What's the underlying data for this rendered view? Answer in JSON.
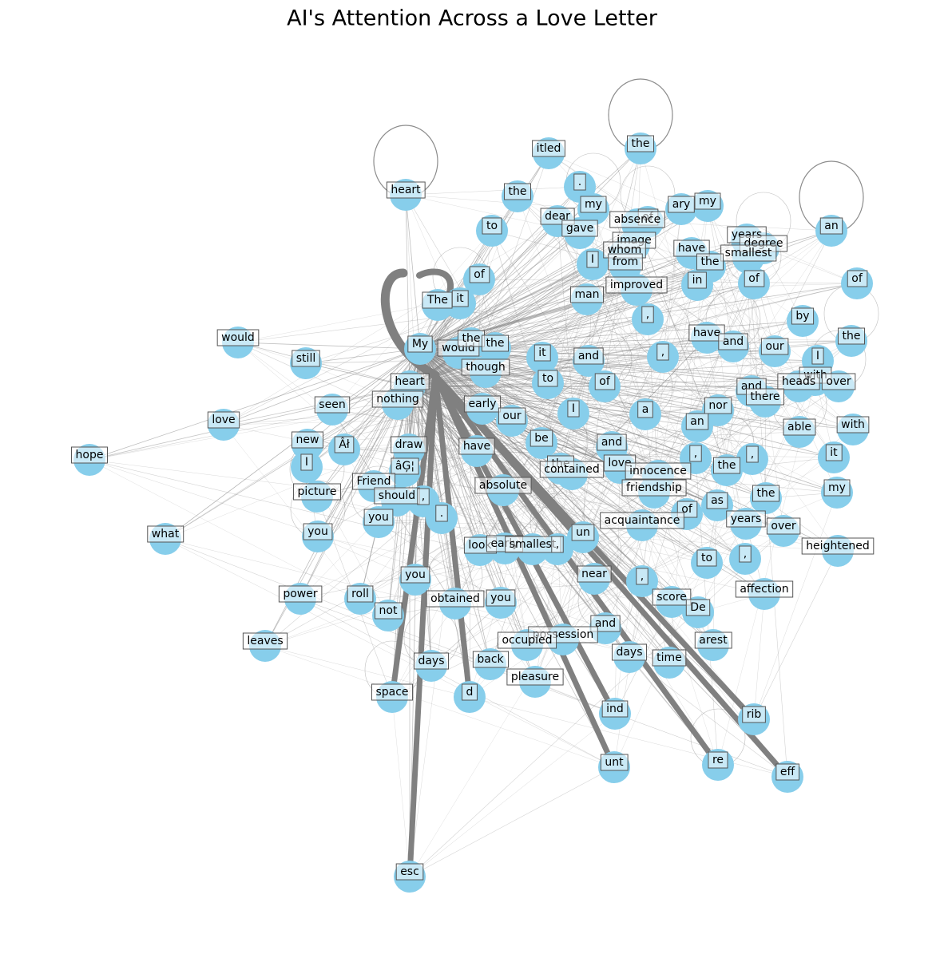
{
  "title": "AI's Attention Across a Love Letter",
  "nodes": [
    {
      "label": "heart"
    },
    {
      "label": "itled"
    },
    {
      "label": "the"
    },
    {
      "label": "."
    },
    {
      "label": "the"
    },
    {
      "label": "my"
    },
    {
      "label": "ary"
    },
    {
      "label": "my"
    },
    {
      "label": "dear"
    },
    {
      "label": "gave"
    },
    {
      "label": "of"
    },
    {
      "label": "absence"
    },
    {
      "label": "to"
    },
    {
      "label": "an"
    },
    {
      "label": "years"
    },
    {
      "label": "degree"
    },
    {
      "label": "image"
    },
    {
      "label": "whom"
    },
    {
      "label": "have"
    },
    {
      "label": "smallest"
    },
    {
      "label": "I"
    },
    {
      "label": "from"
    },
    {
      "label": "the"
    },
    {
      "label": "of"
    },
    {
      "label": "in"
    },
    {
      "label": "of"
    },
    {
      "label": "of"
    },
    {
      "label": "improved"
    },
    {
      "label": "man"
    },
    {
      "label": "The"
    },
    {
      "label": "it"
    },
    {
      "label": ","
    },
    {
      "label": "by"
    },
    {
      "label": "would"
    },
    {
      "label": "have"
    },
    {
      "label": "the"
    },
    {
      "label": "My"
    },
    {
      "label": "would"
    },
    {
      "label": "the"
    },
    {
      "label": "the"
    },
    {
      "label": "and"
    },
    {
      "label": "our"
    },
    {
      "label": "still"
    },
    {
      "label": "it"
    },
    {
      "label": "and"
    },
    {
      "label": ","
    },
    {
      "label": "I"
    },
    {
      "label": "though"
    },
    {
      "label": "with"
    },
    {
      "label": "heads"
    },
    {
      "label": "over"
    },
    {
      "label": "and"
    },
    {
      "label": "there"
    },
    {
      "label": "heart"
    },
    {
      "label": "to"
    },
    {
      "label": "of"
    },
    {
      "label": "nothing"
    },
    {
      "label": "seen"
    },
    {
      "label": "early"
    },
    {
      "label": "I"
    },
    {
      "label": "a"
    },
    {
      "label": "nor"
    },
    {
      "label": "our"
    },
    {
      "label": "love"
    },
    {
      "label": "an"
    },
    {
      "label": "able"
    },
    {
      "label": "with"
    },
    {
      "label": "new"
    },
    {
      "label": "Âł"
    },
    {
      "label": "draw"
    },
    {
      "label": "have"
    },
    {
      "label": "be"
    },
    {
      "label": "and"
    },
    {
      "label": "I"
    },
    {
      "label": "âĢ¦"
    },
    {
      "label": "the"
    },
    {
      "label": "contained"
    },
    {
      "label": "love"
    },
    {
      "label": ","
    },
    {
      "label": ","
    },
    {
      "label": "the"
    },
    {
      "label": "it"
    },
    {
      "label": "innocence"
    },
    {
      "label": "hope"
    },
    {
      "label": "Friend"
    },
    {
      "label": "picture"
    },
    {
      "label": "absolute"
    },
    {
      "label": "friendship"
    },
    {
      "label": "my"
    },
    {
      "label": "should"
    },
    {
      "label": ","
    },
    {
      "label": "the"
    },
    {
      "label": "."
    },
    {
      "label": "as"
    },
    {
      "label": "of"
    },
    {
      "label": "you"
    },
    {
      "label": "acquaintance"
    },
    {
      "label": "years"
    },
    {
      "label": "over"
    },
    {
      "label": "what"
    },
    {
      "label": "you"
    },
    {
      "label": "un"
    },
    {
      "label": "look"
    },
    {
      "label": "early"
    },
    {
      "label": "smallest"
    },
    {
      "label": ","
    },
    {
      "label": "heightened"
    },
    {
      "label": ","
    },
    {
      "label": "to"
    },
    {
      "label": "you"
    },
    {
      "label": "near"
    },
    {
      "label": ","
    },
    {
      "label": "affection"
    },
    {
      "label": "power"
    },
    {
      "label": "roll"
    },
    {
      "label": "obtained"
    },
    {
      "label": "you"
    },
    {
      "label": "score"
    },
    {
      "label": "not"
    },
    {
      "label": "De"
    },
    {
      "label": "and"
    },
    {
      "label": "leaves"
    },
    {
      "label": "possession"
    },
    {
      "label": "occupied"
    },
    {
      "label": "arest"
    },
    {
      "label": "days"
    },
    {
      "label": "back"
    },
    {
      "label": "days"
    },
    {
      "label": "time"
    },
    {
      "label": "pleasure"
    },
    {
      "label": "space"
    },
    {
      "label": "d"
    },
    {
      "label": "ind"
    },
    {
      "label": "rib"
    },
    {
      "label": "unt"
    },
    {
      "label": "re"
    },
    {
      "label": "eff"
    },
    {
      "label": "esc"
    }
  ]
}
